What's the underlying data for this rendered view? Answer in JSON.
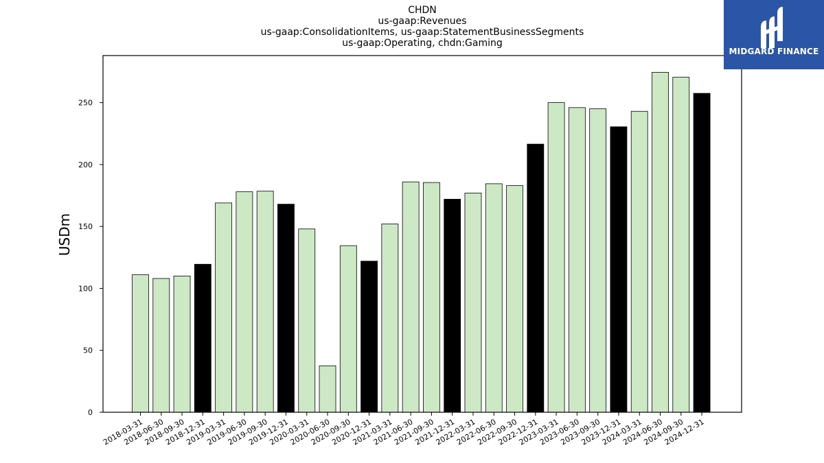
{
  "titles": {
    "line1": "CHDN",
    "line2": "us-gaap:Revenues",
    "line3": "us-gaap:ConsolidationItems, us-gaap:StatementBusinessSegments",
    "line4": "us-gaap:Operating, chdn:Gaming"
  },
  "logo": {
    "text": "MIDGARD FINANCE",
    "color": "#2b55a6"
  },
  "chart_data": {
    "type": "bar",
    "title": "CHDN\nus-gaap:Revenues\nus-gaap:ConsolidationItems, us-gaap:StatementBusinessSegments\nus-gaap:Operating, chdn:Gaming",
    "xlabel": "",
    "ylabel": "USDm",
    "ylim": [
      0,
      288
    ],
    "yticks": [
      0,
      50,
      100,
      150,
      200,
      250
    ],
    "grid": false,
    "colors": {
      "quarter": "#cce8c5",
      "year_end": "#000000",
      "edge": "#000000"
    },
    "categories": [
      "2018-03-31",
      "2018-06-30",
      "2018-09-30",
      "2018-12-31",
      "2019-03-31",
      "2019-06-30",
      "2019-09-30",
      "2019-12-31",
      "2020-03-31",
      "2020-06-30",
      "2020-09-30",
      "2020-12-31",
      "2021-03-31",
      "2021-06-30",
      "2021-09-30",
      "2021-12-31",
      "2022-03-31",
      "2022-06-30",
      "2022-09-30",
      "2022-12-31",
      "2023-03-31",
      "2023-06-30",
      "2023-09-30",
      "2023-12-31",
      "2024-03-31",
      "2024-06-30",
      "2024-09-30",
      "2024-12-31"
    ],
    "values": [
      111,
      108,
      110,
      119.5,
      169,
      178,
      178.5,
      168,
      148,
      37.5,
      134.5,
      122,
      152,
      186,
      185.5,
      172,
      177,
      184.5,
      183,
      216.5,
      250,
      246,
      245,
      230.5,
      243,
      274.5,
      270.5,
      257.5
    ]
  }
}
